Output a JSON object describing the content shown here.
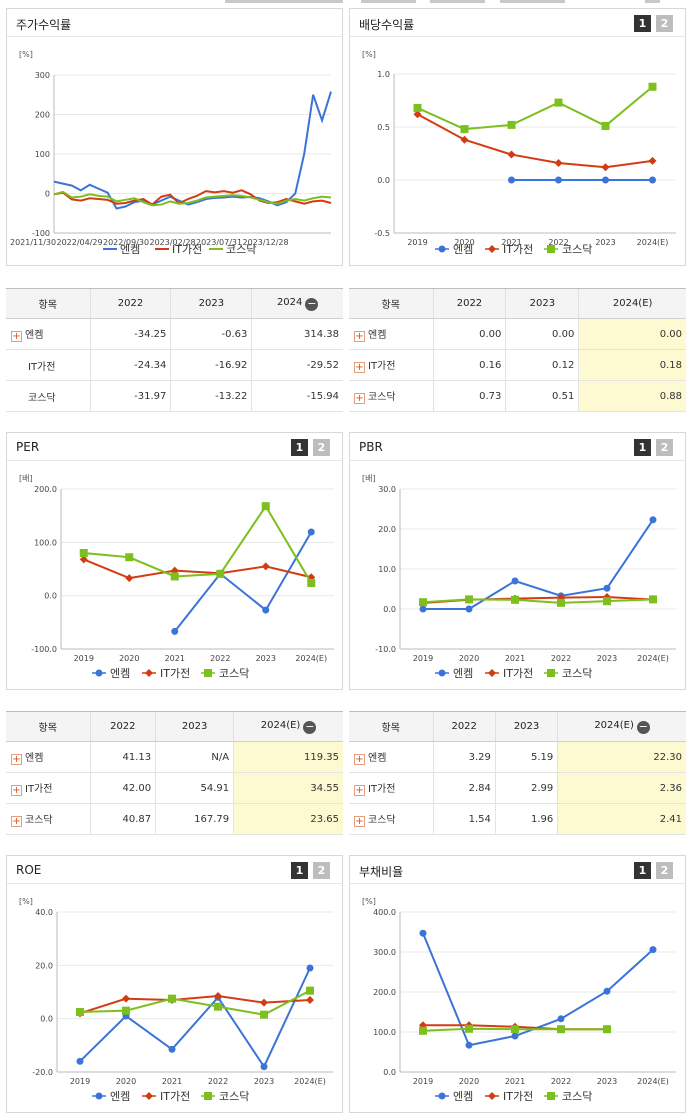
{
  "legend": {
    "s1": "엔켐",
    "s2": "IT가전",
    "s3": "코스닥"
  },
  "colors": {
    "s1": "#3b74d8",
    "s2": "#d23c14",
    "s3": "#7cbf1e"
  },
  "pager": {
    "p1": "1",
    "p2": "2"
  },
  "table_header_item": "항목",
  "panels": {
    "ret": {
      "title": "주가수익률",
      "unit": "[%]"
    },
    "div": {
      "title": "배당수익률",
      "unit": "[%]"
    },
    "per": {
      "title": "PER",
      "unit": "[배]"
    },
    "pbr": {
      "title": "PBR",
      "unit": "[배]"
    },
    "roe": {
      "title": "ROE",
      "unit": "[%]"
    },
    "debt": {
      "title": "부채비율",
      "unit": "[%]"
    }
  },
  "tables": {
    "ret": {
      "cols": [
        "2022",
        "2023",
        "2024"
      ],
      "minus": "−",
      "rows": [
        {
          "name": "엔켐",
          "plus": true,
          "vals": [
            "-34.25",
            "-0.63",
            "314.38"
          ]
        },
        {
          "name": "IT가전",
          "plus": false,
          "vals": [
            "-24.34",
            "-16.92",
            "-29.52"
          ]
        },
        {
          "name": "코스닥",
          "plus": false,
          "vals": [
            "-31.97",
            "-13.22",
            "-15.94"
          ]
        }
      ]
    },
    "div": {
      "cols": [
        "2022",
        "2023",
        "2024(E)"
      ],
      "rows": [
        {
          "name": "엔켐",
          "plus": true,
          "vals": [
            "0.00",
            "0.00",
            "0.00"
          ]
        },
        {
          "name": "IT가전",
          "plus": true,
          "vals": [
            "0.16",
            "0.12",
            "0.18"
          ]
        },
        {
          "name": "코스닥",
          "plus": true,
          "vals": [
            "0.73",
            "0.51",
            "0.88"
          ]
        }
      ]
    },
    "per": {
      "cols": [
        "2022",
        "2023",
        "2024(E)"
      ],
      "minus": "−",
      "rows": [
        {
          "name": "엔켐",
          "plus": true,
          "vals": [
            "41.13",
            "N/A",
            "119.35"
          ]
        },
        {
          "name": "IT가전",
          "plus": true,
          "vals": [
            "42.00",
            "54.91",
            "34.55"
          ]
        },
        {
          "name": "코스닥",
          "plus": true,
          "vals": [
            "40.87",
            "167.79",
            "23.65"
          ]
        }
      ]
    },
    "pbr": {
      "cols": [
        "2022",
        "2023",
        "2024(E)"
      ],
      "minus": "−",
      "rows": [
        {
          "name": "엔켐",
          "plus": true,
          "vals": [
            "3.29",
            "5.19",
            "22.30"
          ]
        },
        {
          "name": "IT가전",
          "plus": true,
          "vals": [
            "2.84",
            "2.99",
            "2.36"
          ]
        },
        {
          "name": "코스닥",
          "plus": true,
          "vals": [
            "1.54",
            "1.96",
            "2.41"
          ]
        }
      ]
    }
  },
  "chart_data": [
    {
      "id": "ret",
      "type": "line",
      "ylim": [
        -100,
        300
      ],
      "yticks": [
        -100,
        0,
        100,
        200,
        300
      ],
      "xlabels": [
        "2021/11/30",
        "2022/04/29",
        "2022/09/30",
        "2023/02/28",
        "2023/07/31",
        "2023/12/28"
      ],
      "series": [
        {
          "name": "엔켐",
          "values": [
            30,
            25,
            20,
            8,
            22,
            12,
            2,
            -38,
            -33,
            -22,
            -18,
            -28,
            -18,
            -8,
            -18,
            -28,
            -22,
            -14,
            -11,
            -10,
            -8,
            -10,
            -9,
            -12,
            -20,
            -30,
            -22,
            0,
            100,
            250,
            185,
            258
          ]
        },
        {
          "name": "IT가전",
          "values": [
            -2,
            2,
            -15,
            -18,
            -12,
            -14,
            -16,
            -26,
            -24,
            -18,
            -14,
            -28,
            -8,
            -3,
            -25,
            -14,
            -6,
            6,
            3,
            6,
            2,
            8,
            -2,
            -18,
            -24,
            -22,
            -14,
            -20,
            -26,
            -20,
            -18,
            -24
          ]
        },
        {
          "name": "코스닥",
          "values": [
            -2,
            4,
            -10,
            -8,
            -2,
            -6,
            -8,
            -20,
            -16,
            -12,
            -22,
            -30,
            -28,
            -20,
            -26,
            -24,
            -18,
            -10,
            -8,
            -6,
            -4,
            -6,
            -10,
            -16,
            -22,
            -26,
            -18,
            -14,
            -18,
            -12,
            -8,
            -10
          ]
        }
      ]
    },
    {
      "id": "div",
      "type": "line",
      "ylim": [
        -0.5,
        1.0
      ],
      "yticks": [
        "-0.5",
        "0.0",
        "0.5",
        "1.0"
      ],
      "categories": [
        "2019",
        "2020",
        "2021",
        "2022",
        "2023",
        "2024(E)"
      ],
      "series": [
        {
          "name": "엔켐",
          "values": [
            null,
            null,
            0.0,
            0.0,
            0.0,
            0.0
          ]
        },
        {
          "name": "IT가전",
          "values": [
            0.62,
            0.38,
            0.24,
            0.16,
            0.12,
            0.18
          ]
        },
        {
          "name": "코스닥",
          "values": [
            0.68,
            0.48,
            0.52,
            0.73,
            0.51,
            0.88
          ]
        }
      ]
    },
    {
      "id": "per",
      "type": "line",
      "ylim": [
        -100,
        200
      ],
      "yticks": [
        "-100.0",
        "0.0",
        "100.0",
        "200.0"
      ],
      "categories": [
        "2019",
        "2020",
        "2021",
        "2022",
        "2023",
        "2024(E)"
      ],
      "series": [
        {
          "name": "엔켐",
          "values": [
            null,
            null,
            -67,
            41.13,
            -27,
            119.35
          ]
        },
        {
          "name": "IT가전",
          "values": [
            68,
            33,
            47,
            42.0,
            54.91,
            34.55
          ]
        },
        {
          "name": "코스닥",
          "values": [
            80,
            72,
            36,
            40.87,
            167.79,
            23.65
          ]
        }
      ]
    },
    {
      "id": "pbr",
      "type": "line",
      "ylim": [
        -10,
        30
      ],
      "yticks": [
        "-10.0",
        "0.0",
        "10.0",
        "20.0",
        "30.0"
      ],
      "categories": [
        "2019",
        "2020",
        "2021",
        "2022",
        "2023",
        "2024(E)"
      ],
      "series": [
        {
          "name": "엔켐",
          "values": [
            0,
            0,
            7.0,
            3.29,
            5.19,
            22.3
          ]
        },
        {
          "name": "IT가전",
          "values": [
            1.5,
            2.3,
            2.6,
            2.84,
            2.99,
            2.36
          ]
        },
        {
          "name": "코스닥",
          "values": [
            1.7,
            2.4,
            2.3,
            1.54,
            1.96,
            2.41
          ]
        }
      ]
    },
    {
      "id": "roe",
      "type": "line",
      "ylim": [
        -20,
        40
      ],
      "yticks": [
        "-20.0",
        "0.0",
        "20.0",
        "40.0"
      ],
      "categories": [
        "2019",
        "2020",
        "2021",
        "2022",
        "2023",
        "2024(E)"
      ],
      "series": [
        {
          "name": "엔켐",
          "values": [
            -16,
            1,
            -11.5,
            8,
            -18,
            19
          ]
        },
        {
          "name": "IT가전",
          "values": [
            2,
            7.5,
            7,
            8.5,
            6,
            7
          ]
        },
        {
          "name": "코스닥",
          "values": [
            2.5,
            3,
            7.5,
            4.5,
            1.5,
            10.5
          ]
        }
      ]
    },
    {
      "id": "debt",
      "type": "line",
      "ylim": [
        0,
        400
      ],
      "yticks": [
        "0.0",
        "100.0",
        "200.0",
        "300.0",
        "400.0"
      ],
      "categories": [
        "2019",
        "2020",
        "2021",
        "2022",
        "2023",
        "2024(E)"
      ],
      "series": [
        {
          "name": "엔켐",
          "values": [
            347,
            67,
            90,
            133,
            202,
            306
          ]
        },
        {
          "name": "IT가전",
          "values": [
            117,
            117,
            113,
            107,
            107,
            null
          ]
        },
        {
          "name": "코스닥",
          "values": [
            103,
            108,
            107,
            107,
            107,
            null
          ]
        }
      ]
    }
  ]
}
